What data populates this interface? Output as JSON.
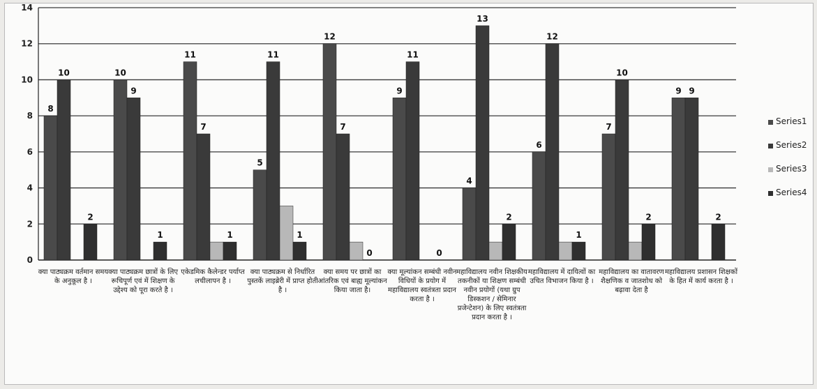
{
  "chart_data": {
    "type": "bar",
    "categories": [
      "क्या पाठ्यक्रम वर्तमान समय के अनुकूल है ।",
      "क्या पाठ्यक्रम छात्रों के लिए रूचिपूर्ण एवं में शिक्षण के उद्देश्य को पूरा करते है ।",
      "एकेडमिक कैलेन्डर पर्याप्त लचीलापन है ।",
      "क्या पाठ्यक्रम से निर्धारित पुस्तकें लाइब्रेरी में प्राप्त होती है ।",
      "क्या समय पर छात्रों का आंतरिक एवं बाह्य मूल्यांकन किया जाता है।",
      "क्या मूल्यांकन सम्बंधी नवीन विधियों के प्रयोग में महाविद्यालय स्वतंत्रता प्रदान करता है ।",
      "महाविद्यालय नवीन शिक्षकीय तकनीकों या शिक्षण सम्बंधी नवीन प्रयोगों (यथा ग्रुप डिस्कशन / सेमिनार प्रजेन्टेशन) के लिए स्वतंत्रता प्रदान करता है ।",
      "महाविद्यालय में दायित्वों का उचित विभाजन किया है ।",
      "महाविद्यालय का वातावरण शैक्षणिक व जातशोध को बढ़ावा देता है",
      "महाविद्यालय प्रशासन शिक्षकों के हित में कार्य करता है ।"
    ],
    "series": [
      {
        "name": "Series1",
        "values": [
          8,
          10,
          11,
          5,
          12,
          9,
          4,
          6,
          7,
          9
        ]
      },
      {
        "name": "Series2",
        "values": [
          10,
          9,
          7,
          11,
          7,
          11,
          13,
          12,
          10,
          9
        ]
      },
      {
        "name": "Series3",
        "values": [
          0,
          0,
          1,
          3,
          1,
          0,
          1,
          1,
          1,
          0
        ]
      },
      {
        "name": "Series4",
        "values": [
          2,
          1,
          1,
          1,
          0,
          0,
          2,
          1,
          2,
          2
        ]
      }
    ],
    "data_labels": [
      [
        "8",
        "10",
        "",
        "2"
      ],
      [
        "10",
        "9",
        "",
        "1"
      ],
      [
        "11",
        "7",
        "",
        "1"
      ],
      [
        "5",
        "11",
        "",
        "1"
      ],
      [
        "12",
        "7",
        "",
        "0"
      ],
      [
        "9",
        "11",
        "",
        "0"
      ],
      [
        "4",
        "13",
        "",
        "2"
      ],
      [
        "6",
        "12",
        "",
        "1"
      ],
      [
        "7",
        "10",
        "",
        "2"
      ],
      [
        "9",
        "9",
        "",
        "2"
      ]
    ],
    "yticks": [
      "0",
      "2",
      "4",
      "6",
      "8",
      "10",
      "12",
      "14"
    ],
    "ylim": [
      0,
      14
    ],
    "grid": true,
    "legend_position": "right",
    "colors": {
      "Series1": "#4a4a4a",
      "Series2": "#3a3a3a",
      "Series3": "#b8b8b8",
      "Series4": "#2f2f2f",
      "grid": "#3a3a3a",
      "axis": "#222222"
    },
    "title": "",
    "xlabel": "",
    "ylabel": ""
  }
}
